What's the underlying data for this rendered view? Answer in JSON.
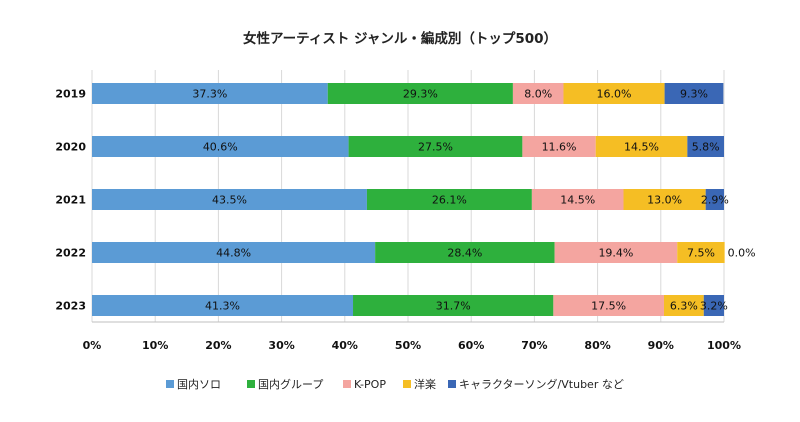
{
  "chart_data": {
    "type": "bar",
    "orientation": "horizontal",
    "stacked": true,
    "percent": true,
    "title": "女性アーティスト ジャンル・編成別（トップ500）",
    "categories": [
      "2019",
      "2020",
      "2021",
      "2022",
      "2023"
    ],
    "series": [
      {
        "name": "国内ソロ",
        "color": "#5b9bd5",
        "values": [
          37.3,
          40.6,
          43.5,
          44.8,
          41.3
        ],
        "labels": [
          "37.3%",
          "40.6%",
          "43.5%",
          "44.8%",
          "41.3%"
        ]
      },
      {
        "name": "国内グループ",
        "color": "#2eb03d",
        "values": [
          29.3,
          27.5,
          26.1,
          28.4,
          31.7
        ],
        "labels": [
          "29.3%",
          "27.5%",
          "26.1%",
          "28.4%",
          "31.7%"
        ]
      },
      {
        "name": "K-POP",
        "color": "#f4a5a0",
        "values": [
          8.0,
          11.6,
          14.5,
          19.4,
          17.5
        ],
        "labels": [
          "8.0%",
          "11.6%",
          "14.5%",
          "19.4%",
          "17.5%"
        ]
      },
      {
        "name": "洋楽",
        "color": "#f5be24",
        "values": [
          16.0,
          14.5,
          13.0,
          7.5,
          6.3
        ],
        "labels": [
          "16.0%",
          "14.5%",
          "13.0%",
          "7.5%",
          "6.3%"
        ]
      },
      {
        "name": "キャラクターソング/Vtuber など",
        "color": "#3a67b5",
        "values": [
          9.3,
          5.8,
          2.9,
          0.0,
          3.2
        ],
        "labels": [
          "9.3%",
          "5.8%",
          "2.9%",
          "0.0%",
          "3.2%"
        ]
      }
    ],
    "xlim": [
      0,
      100
    ],
    "xticks": [
      "0%",
      "10%",
      "20%",
      "30%",
      "40%",
      "50%",
      "60%",
      "70%",
      "80%",
      "90%",
      "100%"
    ],
    "grid": true,
    "legend": "bottom"
  }
}
